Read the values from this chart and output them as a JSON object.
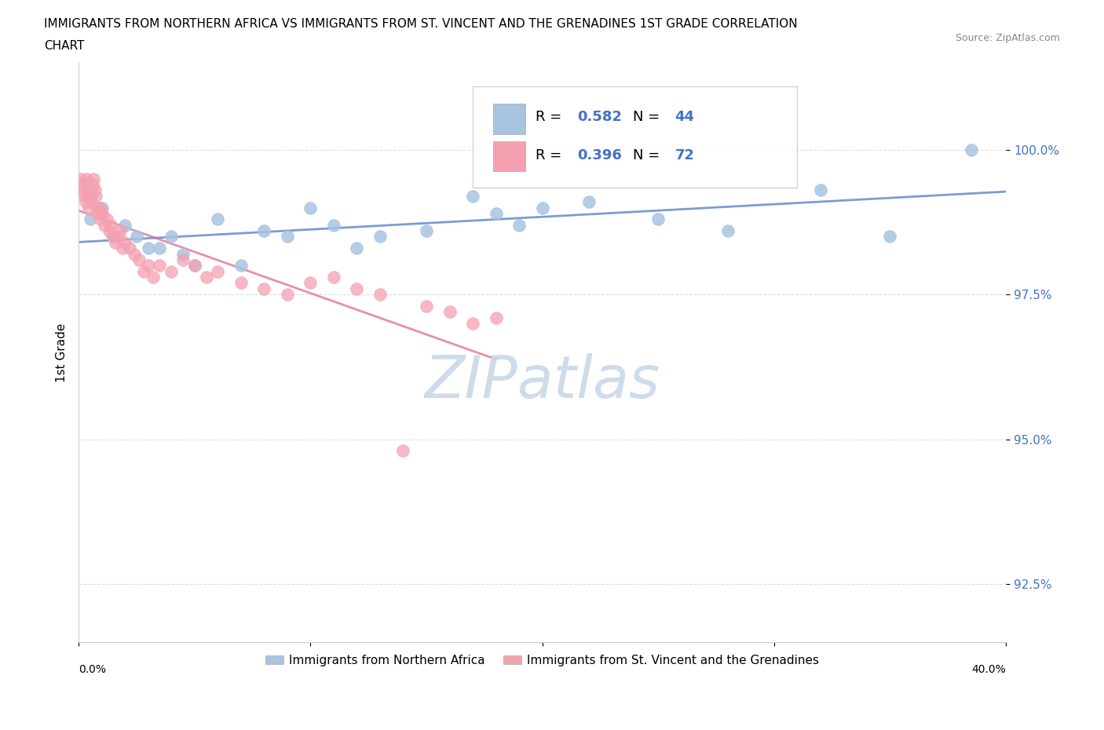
{
  "title_line1": "IMMIGRANTS FROM NORTHERN AFRICA VS IMMIGRANTS FROM ST. VINCENT AND THE GRENADINES 1ST GRADE CORRELATION",
  "title_line2": "CHART",
  "source_text": "Source: ZipAtlas.com",
  "xlabel_bottom_left": "0.0%",
  "xlabel_bottom_right": "40.0%",
  "ylabel_label": "1st Grade",
  "ytick_labels": [
    "100.0%",
    "97.5%",
    "95.0%",
    "92.5%"
  ],
  "ytick_values": [
    100.0,
    97.5,
    95.0,
    92.5
  ],
  "xlim": [
    0.0,
    40.0
  ],
  "ylim": [
    91.5,
    101.5
  ],
  "legend_items": [
    {
      "label_r": "R = ",
      "label_rv": "0.582",
      "label_n": "  N = ",
      "label_nv": "44",
      "color": "#a8c4e0"
    },
    {
      "label_r": "R = ",
      "label_rv": "0.396",
      "label_n": "  N = ",
      "label_nv": "72",
      "color": "#f4a0b0"
    }
  ],
  "blue_scatter_x": [
    0.5,
    1.0,
    1.5,
    2.0,
    2.5,
    3.0,
    3.5,
    4.0,
    4.5,
    5.0,
    6.0,
    7.0,
    8.0,
    9.0,
    10.0,
    11.0,
    12.0,
    13.0,
    15.0,
    17.0,
    18.0,
    19.0,
    20.0,
    22.0,
    25.0,
    28.0,
    32.0,
    35.0,
    38.5
  ],
  "blue_scatter_y": [
    98.8,
    99.0,
    98.5,
    98.7,
    98.5,
    98.3,
    98.3,
    98.5,
    98.2,
    98.0,
    98.8,
    98.0,
    98.6,
    98.5,
    99.0,
    98.7,
    98.3,
    98.5,
    98.6,
    99.2,
    98.9,
    98.7,
    99.0,
    99.1,
    98.8,
    98.6,
    99.3,
    98.5,
    100.0
  ],
  "pink_scatter_x": [
    0.1,
    0.15,
    0.2,
    0.25,
    0.3,
    0.35,
    0.4,
    0.45,
    0.5,
    0.55,
    0.6,
    0.65,
    0.7,
    0.75,
    0.8,
    0.85,
    0.9,
    0.95,
    1.0,
    1.1,
    1.2,
    1.3,
    1.4,
    1.5,
    1.6,
    1.7,
    1.8,
    1.9,
    2.0,
    2.2,
    2.4,
    2.6,
    2.8,
    3.0,
    3.2,
    3.5,
    4.0,
    4.5,
    5.0,
    5.5,
    6.0,
    7.0,
    8.0,
    9.0,
    10.0,
    11.0,
    12.0,
    13.0,
    14.0,
    15.0,
    16.0,
    17.0,
    18.0
  ],
  "pink_scatter_y": [
    99.5,
    99.3,
    99.4,
    99.2,
    99.1,
    99.5,
    99.3,
    99.0,
    99.2,
    99.1,
    99.4,
    99.5,
    99.3,
    99.2,
    99.0,
    98.9,
    99.0,
    98.8,
    98.9,
    98.7,
    98.8,
    98.6,
    98.7,
    98.5,
    98.4,
    98.5,
    98.6,
    98.3,
    98.4,
    98.3,
    98.2,
    98.1,
    97.9,
    98.0,
    97.8,
    98.0,
    97.9,
    98.1,
    98.0,
    97.8,
    97.9,
    97.7,
    97.6,
    97.5,
    97.7,
    97.8,
    97.6,
    97.5,
    94.8,
    97.3,
    97.2,
    97.0,
    97.1
  ],
  "blue_color": "#a8c4e0",
  "pink_color": "#f4a0b0",
  "blue_line_color": "#4472c4",
  "pink_line_color": "#e06080",
  "grid_color": "#d0d0d0",
  "watermark_color": "#c8d8e8",
  "bottom_legend": [
    "Immigrants from Northern Africa",
    "Immigrants from St. Vincent and the Grenadines"
  ]
}
